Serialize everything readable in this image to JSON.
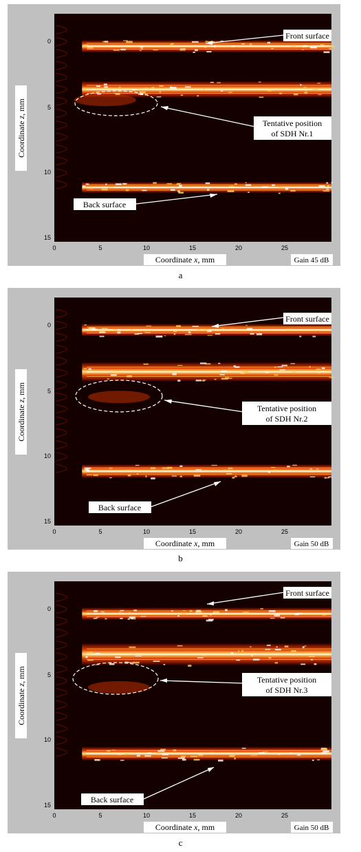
{
  "shared": {
    "xlabel_prefix": "Coordinate ",
    "xlabel_var": "x",
    "xlabel_suffix": ", mm",
    "ylabel_prefix": "Coordinate ",
    "ylabel_var": "z",
    "ylabel_suffix": ", mm",
    "label_front": "Front surface",
    "label_sdh_line1": "Tentative position",
    "label_back": "Back surface",
    "x_ticks": [
      "0",
      "5",
      "10",
      "15",
      "20",
      "25"
    ],
    "y_ticks": [
      "0",
      "5",
      "10",
      "15"
    ],
    "colors": {
      "panel_bg": "#c0c0c0",
      "plot_bg": "#150000",
      "arrow": "#ffffff",
      "hot_low": "#3a0000",
      "hot_mid": "#e04000",
      "hot_high": "#ffd060",
      "hot_peak": "#ffffff"
    }
  },
  "panels": [
    {
      "caption": "a",
      "gain": "Gain 45 dB",
      "sdh_label": "of SDH Nr.1"
    },
    {
      "caption": "b",
      "gain": "Gain 50 dB",
      "sdh_label": "of SDH Nr.2"
    },
    {
      "caption": "c",
      "gain": "Gain 50 dB",
      "sdh_label": "of SDH Nr.3"
    }
  ],
  "chart_data": [
    {
      "type": "heatmap",
      "xlabel": "Coordinate x, mm",
      "ylabel": "Coordinate z, mm",
      "xlim": [
        0,
        30
      ],
      "ylim": [
        15.5,
        -1.7
      ],
      "y_axis": "inverted (z increases downward)",
      "colormap": "hot",
      "gain": "Gain 45 dB",
      "features": [
        {
          "name": "Front surface",
          "z": [
            0.3,
            1.2
          ]
        },
        {
          "name": "Near-surface echo band",
          "z": [
            3.4,
            4.6
          ]
        },
        {
          "name": "Tentative position of SDH Nr.1",
          "center": [
            5.5,
            4.8
          ]
        },
        {
          "name": "Back surface",
          "z": [
            11.0,
            11.8
          ]
        }
      ]
    },
    {
      "type": "heatmap",
      "xlabel": "Coordinate x, mm",
      "ylabel": "Coordinate z, mm",
      "xlim": [
        0,
        30
      ],
      "ylim": [
        15.5,
        -1.7
      ],
      "y_axis": "inverted (z increases downward)",
      "colormap": "hot",
      "gain": "Gain 50 dB",
      "features": [
        {
          "name": "Front surface",
          "z": [
            0.3,
            1.2
          ]
        },
        {
          "name": "Near-surface echo band",
          "z": [
            3.2,
            4.6
          ]
        },
        {
          "name": "Tentative position of SDH Nr.2",
          "center": [
            7.0,
            5.8
          ]
        },
        {
          "name": "Back surface",
          "z": [
            10.9,
            11.9
          ]
        }
      ]
    },
    {
      "type": "heatmap",
      "xlabel": "Coordinate x, mm",
      "ylabel": "Coordinate z, mm",
      "xlim": [
        0,
        30
      ],
      "ylim": [
        15.5,
        -1.7
      ],
      "y_axis": "inverted (z increases downward)",
      "colormap": "hot",
      "gain": "Gain 50 dB",
      "features": [
        {
          "name": "Front surface",
          "z": [
            0.3,
            1.2
          ]
        },
        {
          "name": "Near-surface echo band",
          "z": [
            3.0,
            4.6
          ]
        },
        {
          "name": "Tentative position of SDH Nr.3",
          "center": [
            7.0,
            6.3
          ]
        },
        {
          "name": "Back surface",
          "z": [
            10.8,
            11.8
          ]
        }
      ]
    }
  ]
}
